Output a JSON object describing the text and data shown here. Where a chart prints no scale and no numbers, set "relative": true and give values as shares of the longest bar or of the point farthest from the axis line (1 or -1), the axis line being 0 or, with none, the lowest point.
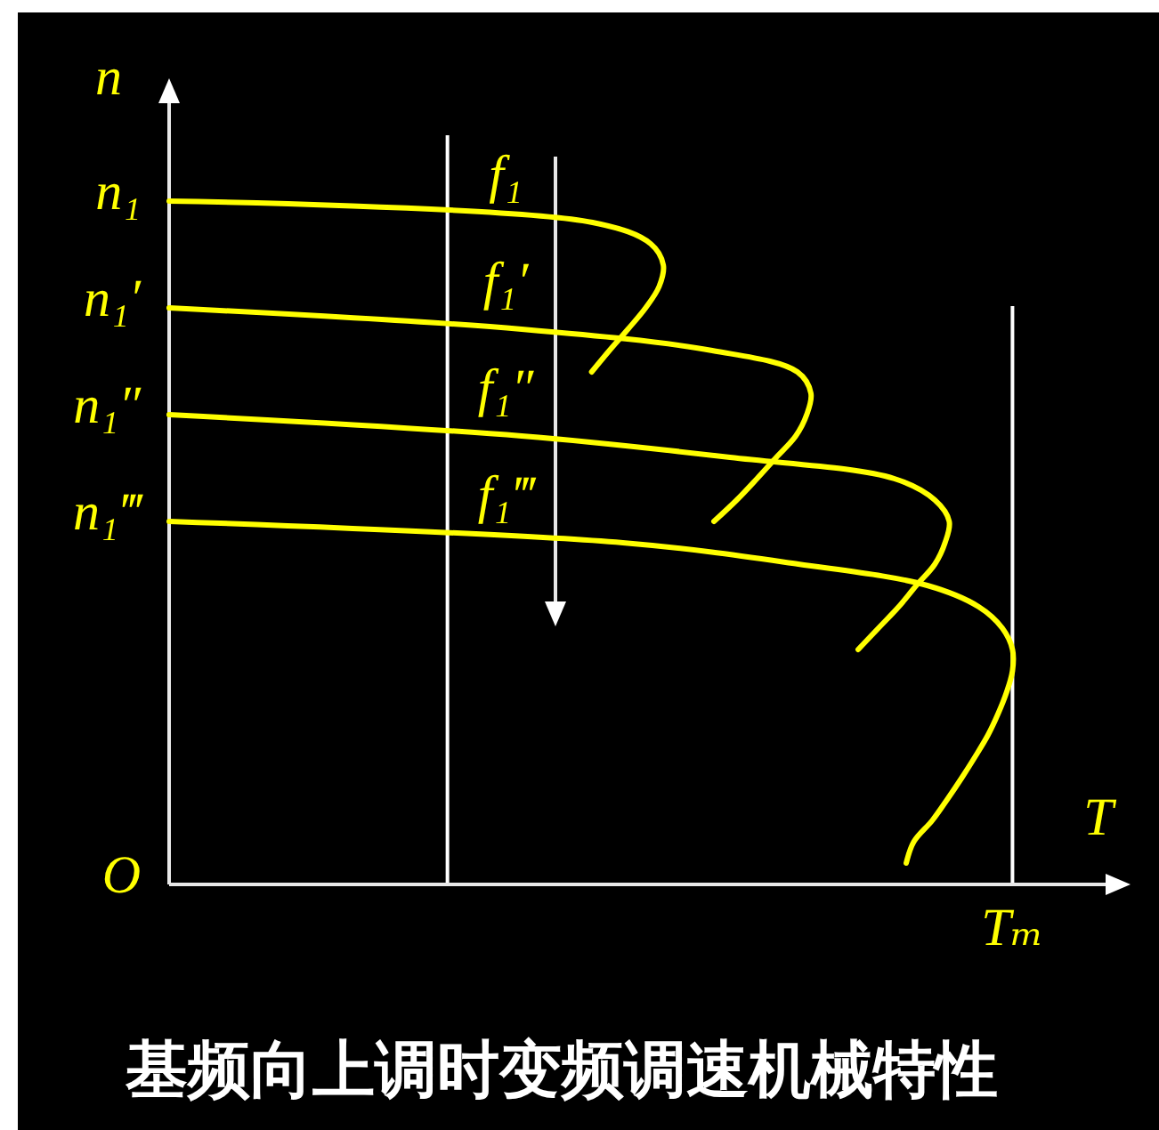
{
  "chart_data": {
    "type": "line",
    "orientation": "horizontal",
    "relative": true,
    "title": "基频向上调时变频调速机械特性",
    "xlabel": "T",
    "ylabel": "n",
    "categories": [
      "n₁",
      null,
      null,
      null,
      null,
      "n₁′",
      null,
      null,
      null,
      null,
      "n₁″",
      null,
      null,
      null,
      null,
      "n₁‴",
      null,
      null,
      null,
      null,
      null,
      null,
      null,
      null,
      null,
      null,
      null,
      null,
      null,
      null,
      null,
      null,
      "O"
    ],
    "series": [
      {
        "name": "f₁",
        "color": "#ffff00",
        "values": [
          0,
          0.502,
          0.571,
          0.586,
          0.581,
          0.565,
          0.544,
          0.522,
          0.501,
          null,
          null,
          null,
          null,
          null,
          null,
          null,
          null,
          null,
          null,
          null,
          null,
          null,
          null,
          null,
          null,
          null,
          null,
          null,
          null,
          null,
          null,
          null,
          null
        ]
      },
      {
        "name": "f₁′",
        "color": "#ffff00",
        "values": [
          null,
          null,
          null,
          null,
          null,
          0,
          0.418,
          0.644,
          0.745,
          0.761,
          0.756,
          0.743,
          0.72,
          0.697,
          0.673,
          0.646,
          null,
          null,
          null,
          null,
          null,
          null,
          null,
          null,
          null,
          null,
          null,
          null,
          null,
          null,
          null,
          null,
          null
        ]
      },
      {
        "name": "f₁″",
        "color": "#ffff00",
        "values": [
          null,
          null,
          null,
          null,
          null,
          null,
          null,
          null,
          null,
          null,
          0,
          0.418,
          0.665,
          0.86,
          0.908,
          0.925,
          0.92,
          0.908,
          0.886,
          0.865,
          0.841,
          0.817,
          null,
          null,
          null,
          null,
          null,
          null,
          null,
          null,
          null,
          null,
          null
        ]
      },
      {
        "name": "f₁‴",
        "color": "#ffff00",
        "values": [
          null,
          null,
          null,
          null,
          null,
          null,
          null,
          null,
          null,
          null,
          null,
          null,
          null,
          null,
          null,
          0,
          0.538,
          0.746,
          0.899,
          0.96,
          0.988,
          1,
          1,
          0.993,
          0.983,
          0.971,
          0.956,
          0.94,
          0.923,
          0.905,
          0.883,
          0.874,
          null
        ]
      }
    ],
    "ref_lines": [
      {
        "axis": "x",
        "value": 0.33,
        "color": "#ffffff"
      },
      {
        "axis": "x",
        "value": 1,
        "color": "#ffffff",
        "label": "Tₘ"
      }
    ],
    "line_style": "solid"
  }
}
